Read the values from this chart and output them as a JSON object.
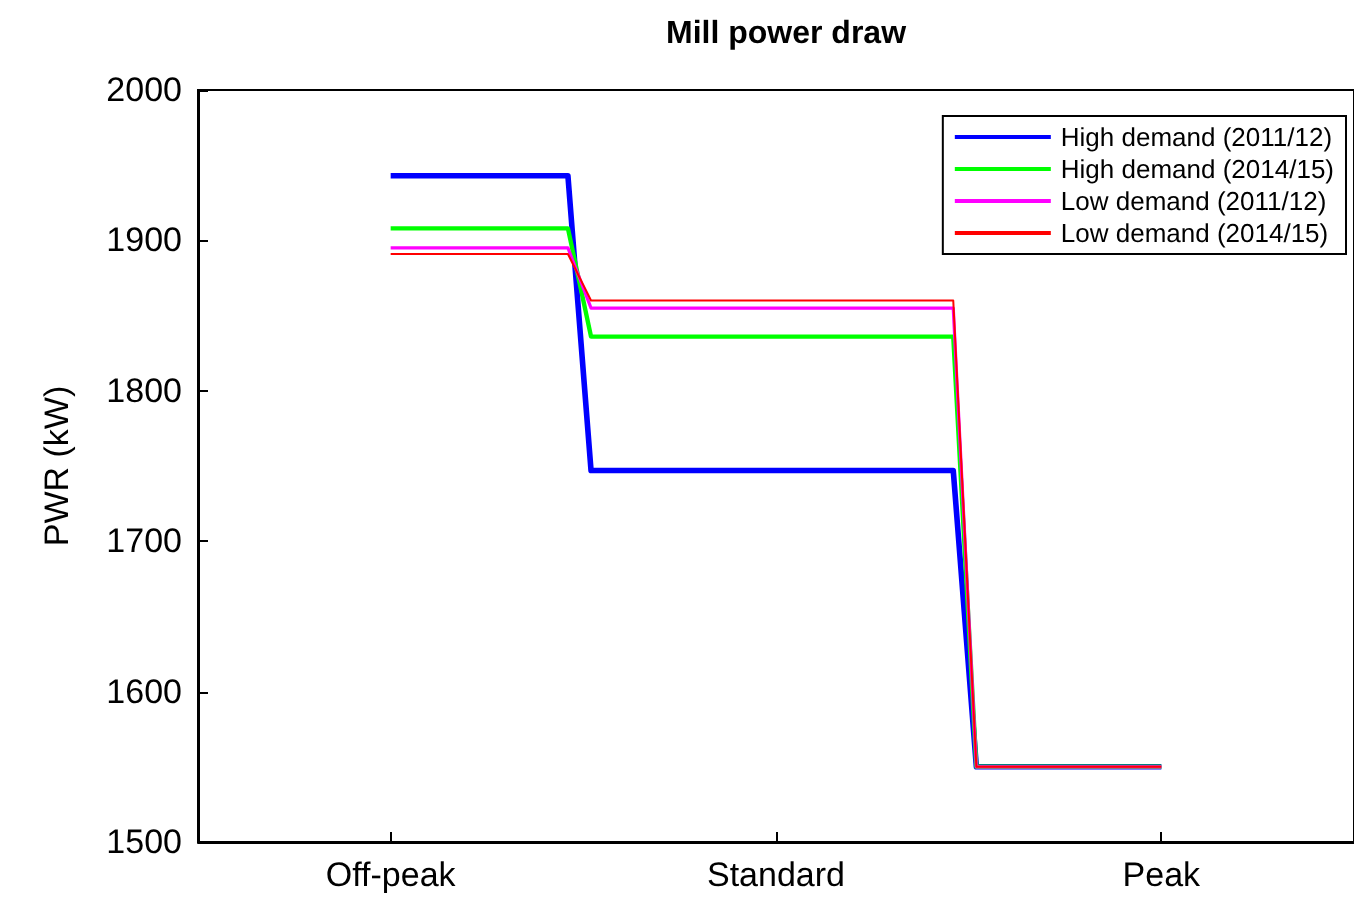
{
  "chart_data": {
    "type": "step",
    "title": "Mill power draw",
    "ylabel": "PWR (kW)",
    "categories": [
      "Off-peak",
      "Standard",
      "Peak"
    ],
    "ylim": [
      1500,
      2000
    ],
    "yticks": [
      1500,
      1600,
      1700,
      1800,
      1900,
      2000
    ],
    "series": [
      {
        "name": "High demand (2011/12)",
        "color": "#0000ff",
        "values": [
          1943,
          1747,
          1550
        ]
      },
      {
        "name": "High demand (2014/15)",
        "color": "#00ff00",
        "values": [
          1908,
          1836,
          1550
        ]
      },
      {
        "name": "Low demand (2011/12)",
        "color": "#ff00ff",
        "values": [
          1895,
          1855,
          1550
        ]
      },
      {
        "name": "Low demand (2014/15)",
        "color": "#ff0000",
        "values": [
          1891,
          1860,
          1550
        ]
      }
    ],
    "legend": "top right",
    "grid": false,
    "marker": "none",
    "line_style": "solid"
  }
}
